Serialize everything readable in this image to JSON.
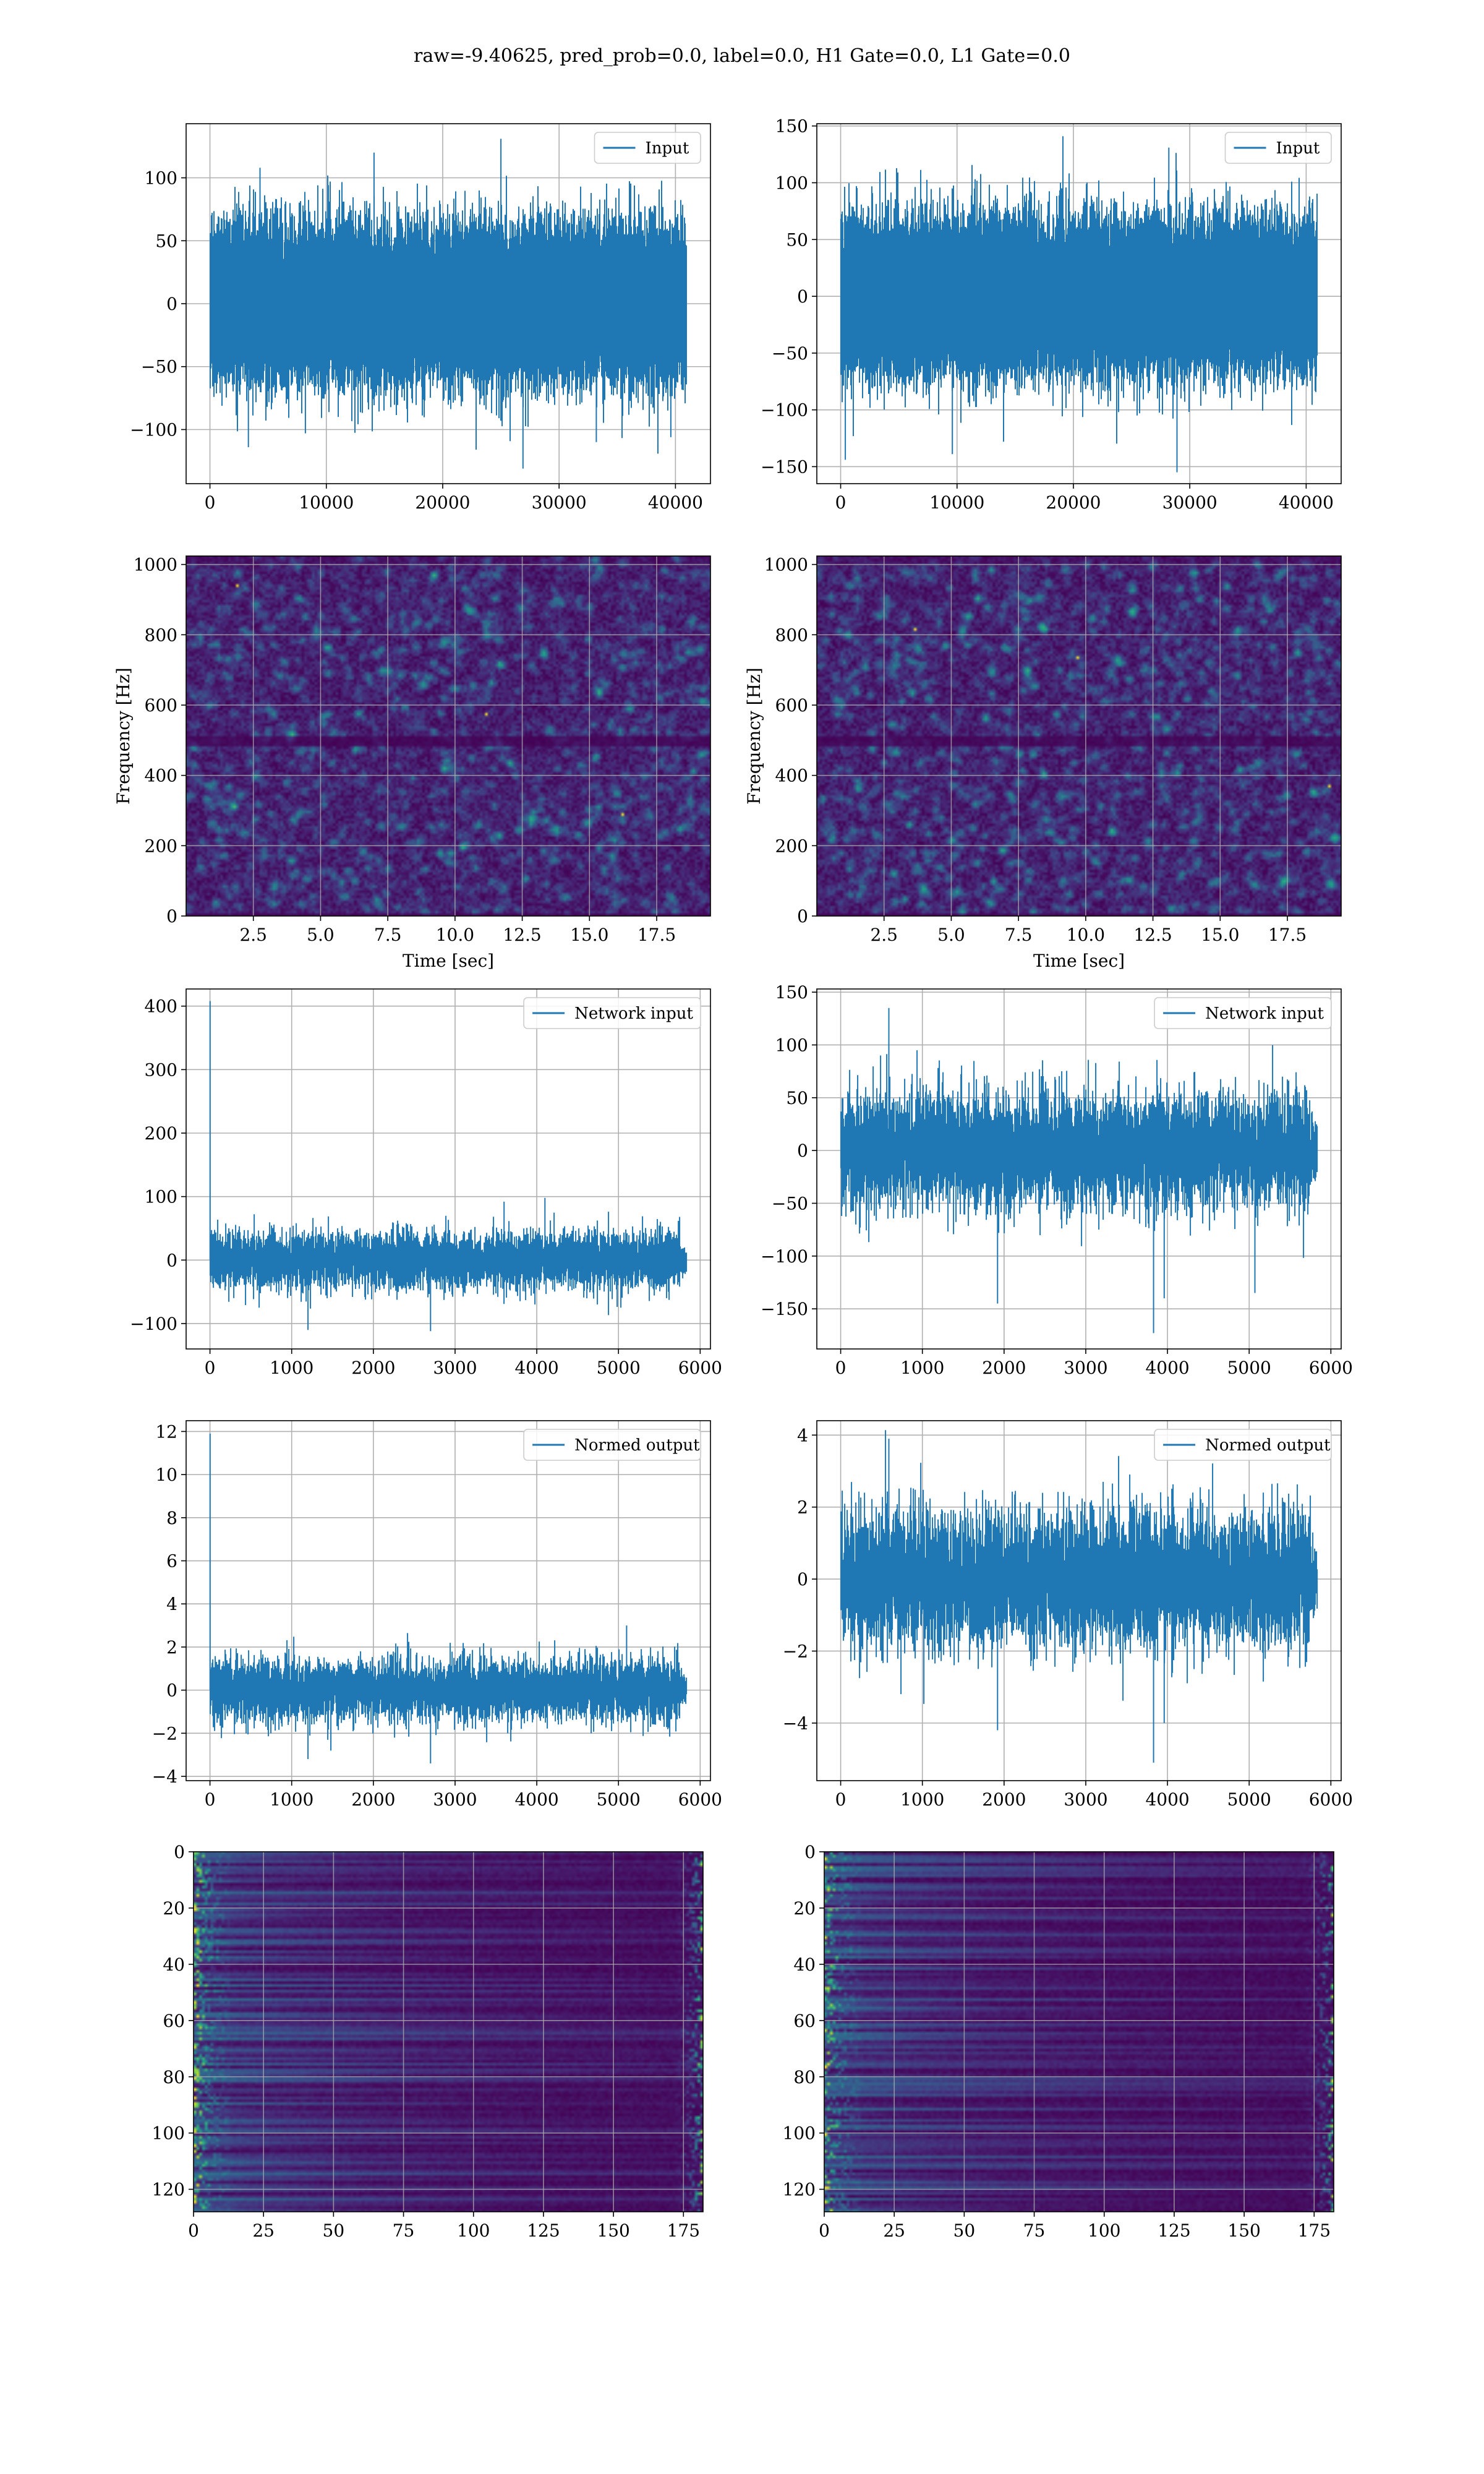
{
  "figure": {
    "title": "raw=-9.40625, pred_prob=0.0, label=0.0, H1 Gate=0.0, L1 Gate=0.0"
  },
  "colors": {
    "series": "#1f77b4",
    "grid": "#b0b0b0",
    "axes": "#000000"
  },
  "chart_data": [
    {
      "id": "input_h1",
      "type": "line",
      "legend": "Input",
      "legend_loc": "upper right",
      "grid": true,
      "n_points": 40960,
      "amplitude_sigma": 27,
      "xlim": [
        -2048,
        43008
      ],
      "ylim": [
        -143,
        143
      ],
      "xticks": [
        0,
        10000,
        20000,
        30000,
        40000
      ],
      "yticks": [
        -100,
        -50,
        0,
        50,
        100
      ],
      "spikes": [
        [
          4300,
          108
        ],
        [
          14100,
          120
        ],
        [
          25000,
          131
        ],
        [
          26900,
          -131
        ],
        [
          3300,
          -114
        ],
        [
          8200,
          -103
        ],
        [
          33200,
          -110
        ],
        [
          39600,
          -106
        ]
      ]
    },
    {
      "id": "input_l1",
      "type": "line",
      "legend": "Input",
      "legend_loc": "upper right",
      "grid": true,
      "n_points": 40960,
      "amplitude_sigma": 30,
      "xlim": [
        -2048,
        43008
      ],
      "ylim": [
        -165,
        152
      ],
      "xticks": [
        0,
        10000,
        20000,
        30000,
        40000
      ],
      "yticks": [
        -150,
        -100,
        -50,
        0,
        50,
        100,
        150
      ],
      "spikes": [
        [
          19100,
          141
        ],
        [
          28200,
          131
        ],
        [
          400,
          -144
        ],
        [
          28900,
          -155
        ],
        [
          9600,
          -139
        ],
        [
          14000,
          -128
        ]
      ]
    },
    {
      "id": "spec_h1",
      "type": "heatmap",
      "xlabel": "Time [sec]",
      "ylabel": "Frequency [Hz]",
      "grid": true,
      "xlim": [
        0,
        19.5
      ],
      "ylim": [
        0,
        1024
      ],
      "xticks": [
        2.5,
        5.0,
        7.5,
        10.0,
        12.5,
        15.0,
        17.5
      ],
      "yticks": [
        0,
        200,
        400,
        600,
        800,
        1000
      ],
      "dark_band_hz": [
        [
          480,
          515
        ],
        [
          8,
          0
        ]
      ],
      "bright_spots": [
        [
          1.9,
          940
        ],
        [
          16.2,
          290
        ],
        [
          11.1,
          580
        ]
      ]
    },
    {
      "id": "spec_l1",
      "type": "heatmap",
      "xlabel": "Time [sec]",
      "ylabel": "Frequency [Hz]",
      "grid": true,
      "xlim": [
        0,
        19.5
      ],
      "ylim": [
        0,
        1024
      ],
      "xticks": [
        2.5,
        5.0,
        7.5,
        10.0,
        12.5,
        15.0,
        17.5
      ],
      "yticks": [
        0,
        200,
        400,
        600,
        800,
        1000
      ],
      "dark_band_hz": [
        [
          480,
          515
        ],
        [
          8,
          0
        ]
      ],
      "bright_spots": [
        [
          19.0,
          370
        ],
        [
          9.7,
          740
        ],
        [
          3.6,
          820
        ]
      ]
    },
    {
      "id": "netin_h1",
      "type": "line",
      "legend": "Network input",
      "legend_loc": "upper right",
      "grid": true,
      "n_points": 5834,
      "amplitude_sigma": 23,
      "xlim": [
        -292,
        6126
      ],
      "ylim": [
        -140,
        427
      ],
      "xticks": [
        0,
        1000,
        2000,
        3000,
        4000,
        5000,
        6000
      ],
      "yticks": [
        -100,
        0,
        100,
        200,
        300,
        400
      ],
      "spikes": [
        [
          2,
          408
        ],
        [
          1200,
          -110
        ],
        [
          2700,
          -112
        ],
        [
          4100,
          98
        ],
        [
          3600,
          92
        ]
      ]
    },
    {
      "id": "netin_l1",
      "type": "line",
      "legend": "Network input",
      "legend_loc": "upper right",
      "grid": true,
      "n_points": 5834,
      "amplitude_sigma": 28,
      "xlim": [
        -292,
        6126
      ],
      "ylim": [
        -188,
        153
      ],
      "xticks": [
        0,
        1000,
        2000,
        3000,
        4000,
        5000,
        6000
      ],
      "yticks": [
        -150,
        -100,
        -50,
        0,
        50,
        100,
        150
      ],
      "spikes": [
        [
          590,
          135
        ],
        [
          1920,
          -145
        ],
        [
          3830,
          -173
        ],
        [
          3960,
          -140
        ],
        [
          5070,
          -135
        ]
      ]
    },
    {
      "id": "normed_h1",
      "type": "line",
      "legend": "Normed output",
      "legend_loc": "upper right",
      "grid": true,
      "n_points": 5834,
      "amplitude_sigma": 0.74,
      "xlim": [
        -292,
        6126
      ],
      "ylim": [
        -4.2,
        12.5
      ],
      "xticks": [
        0,
        1000,
        2000,
        3000,
        4000,
        5000,
        6000
      ],
      "yticks": [
        -4,
        -2,
        0,
        2,
        4,
        6,
        8,
        10,
        12
      ],
      "spikes": [
        [
          2,
          11.9
        ],
        [
          1200,
          -3.2
        ],
        [
          2700,
          -3.4
        ],
        [
          5100,
          3.0
        ]
      ]
    },
    {
      "id": "normed_l1",
      "type": "line",
      "legend": "Normed output",
      "legend_loc": "upper right",
      "grid": true,
      "n_points": 5834,
      "amplitude_sigma": 0.95,
      "xlim": [
        -292,
        6126
      ],
      "ylim": [
        -5.6,
        4.4
      ],
      "xticks": [
        0,
        1000,
        2000,
        3000,
        4000,
        5000,
        6000
      ],
      "yticks": [
        -4,
        -2,
        0,
        2,
        4
      ],
      "spikes": [
        [
          590,
          3.9
        ],
        [
          1920,
          -4.2
        ],
        [
          3830,
          -5.1
        ],
        [
          3960,
          -4.0
        ]
      ]
    },
    {
      "id": "emb_h1",
      "type": "heatmap",
      "grid": true,
      "rows": 128,
      "cols": 182,
      "xlim": [
        0,
        182
      ],
      "ylim": [
        128,
        0
      ],
      "xticks": [
        0,
        25,
        50,
        75,
        100,
        125,
        150,
        175
      ],
      "yticks": [
        0,
        20,
        40,
        60,
        80,
        100,
        120
      ],
      "bright_columns": [
        0,
        1,
        2,
        3,
        4,
        5,
        6,
        7,
        8,
        9,
        10,
        11,
        12,
        172,
        173,
        174,
        175,
        176,
        177,
        178,
        179,
        180,
        181
      ]
    },
    {
      "id": "emb_l1",
      "type": "heatmap",
      "grid": true,
      "rows": 128,
      "cols": 182,
      "xlim": [
        0,
        182
      ],
      "ylim": [
        128,
        0
      ],
      "xticks": [
        0,
        25,
        50,
        75,
        100,
        125,
        150,
        175
      ],
      "yticks": [
        0,
        20,
        40,
        60,
        80,
        100,
        120
      ],
      "bright_columns": [
        0,
        1,
        2,
        3,
        4,
        5,
        6,
        7,
        8,
        9,
        10,
        11,
        12,
        170,
        171,
        172,
        173,
        174,
        175,
        176,
        177,
        178,
        179,
        180,
        181
      ]
    }
  ]
}
